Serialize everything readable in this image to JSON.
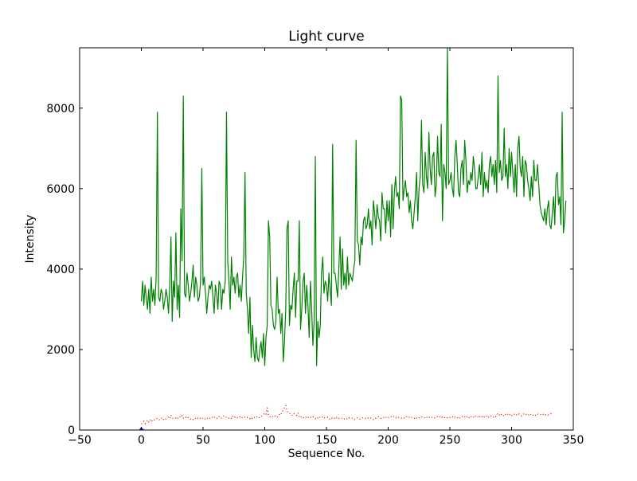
{
  "chart_data": {
    "type": "line",
    "title": "Light curve",
    "xlabel": "Sequence No.",
    "ylabel": "Intensity",
    "xlim": [
      -50,
      350
    ],
    "ylim": [
      0,
      9500
    ],
    "xticks": [
      -50,
      0,
      50,
      100,
      150,
      200,
      250,
      300,
      350
    ],
    "yticks": [
      0,
      2000,
      4000,
      6000,
      8000
    ],
    "grid": false,
    "series": [
      {
        "color": "#008000",
        "style": "solid",
        "x_start": 0,
        "x_step": 1,
        "values": [
          3200,
          3700,
          3100,
          3600,
          3300,
          3000,
          3500,
          2900,
          3800,
          3200,
          3500,
          3100,
          3800,
          7900,
          3300,
          3200,
          3500,
          3400,
          3000,
          3200,
          3500,
          3300,
          2900,
          3600,
          4800,
          2700,
          3700,
          3300,
          4900,
          3000,
          3600,
          2800,
          5500,
          4200,
          8300,
          3400,
          3300,
          3900,
          3600,
          3200,
          3400,
          3700,
          4100,
          3300,
          3800,
          3600,
          3200,
          3300,
          3700,
          6500,
          3600,
          3800,
          3400,
          2900,
          3300,
          3600,
          3500,
          3700,
          3300,
          2900,
          3600,
          3400,
          3000,
          3700,
          3600,
          3000,
          3500,
          3400,
          3700,
          7900,
          4200,
          3700,
          3000,
          4300,
          3600,
          3800,
          3400,
          3800,
          3900,
          3300,
          3600,
          3200,
          3800,
          4300,
          6400,
          3400,
          3000,
          2400,
          3300,
          1800,
          2600,
          2000,
          1700,
          2300,
          1800,
          1700,
          2000,
          2200,
          1800,
          2400,
          1600,
          2300,
          2600,
          5200,
          4800,
          3100,
          3000,
          2600,
          2500,
          2700,
          3800,
          2900,
          3000,
          2400,
          2900,
          1700,
          2200,
          3000,
          5000,
          5200,
          2600,
          3100,
          3000,
          3500,
          3900,
          2800,
          3700,
          3700,
          5200,
          2500,
          3000,
          3700,
          3900,
          2900,
          3600,
          3100,
          2300,
          3700,
          3000,
          2100,
          2700,
          6800,
          1600,
          2700,
          2300,
          2600,
          3900,
          4300,
          3400,
          3700,
          3600,
          3200,
          3900,
          3500,
          3100,
          7100,
          3900,
          3900,
          3600,
          3300,
          4000,
          4800,
          3500,
          4500,
          3600,
          3900,
          3500,
          4300,
          3600,
          3900,
          3800,
          3700,
          4000,
          4200,
          7200,
          4700,
          4600,
          4100,
          4800,
          4600,
          5200,
          5300,
          5000,
          5100,
          5500,
          5000,
          5200,
          4600,
          5700,
          5400,
          5000,
          5600,
          5300,
          5200,
          4700,
          5900,
          5500,
          5500,
          4900,
          5700,
          5200,
          5700,
          4800,
          6100,
          5000,
          5900,
          6300,
          5800,
          5900,
          5500,
          8300,
          8200,
          5700,
          6000,
          6200,
          5800,
          5900,
          5400,
          5700,
          5200,
          5000,
          5400,
          5800,
          6400,
          5200,
          6000,
          6300,
          7700,
          6100,
          5900,
          6900,
          6300,
          6000,
          7400,
          6500,
          6100,
          6800,
          6900,
          5800,
          6100,
          7300,
          6400,
          6300,
          7600,
          5200,
          6600,
          6400,
          6000,
          9500,
          6100,
          6200,
          6400,
          6000,
          5800,
          6800,
          7200,
          6600,
          5900,
          5800,
          6500,
          6700,
          6100,
          7200,
          6700,
          5900,
          6200,
          6100,
          6400,
          6200,
          6800,
          6500,
          6000,
          6000,
          6300,
          6600,
          6100,
          6900,
          5800,
          6400,
          6000,
          6200,
          5900,
          6600,
          6800,
          6300,
          6600,
          6100,
          6700,
          5900,
          8800,
          6400,
          6700,
          6200,
          6300,
          7500,
          6300,
          6600,
          6000,
          7000,
          6300,
          6900,
          6400,
          5900,
          6600,
          5800,
          7000,
          7300,
          6500,
          6300,
          6800,
          5800,
          6700,
          6600,
          6200,
          6000,
          5700,
          6300,
          5800,
          6700,
          6200,
          6200,
          6600,
          6100,
          5600,
          5400,
          5300,
          5200,
          5500,
          5100,
          5500,
          5700,
          5100,
          5000,
          5400,
          5800,
          5100,
          6300,
          6400,
          5600,
          5800,
          5100,
          7900,
          4900,
          5200,
          5700
        ]
      },
      {
        "color": "#ff0000",
        "style": "dotted",
        "x_start": 0,
        "x_step": 1,
        "values": [
          150,
          180,
          220,
          160,
          200,
          250,
          190,
          230,
          270,
          210,
          240,
          260,
          280,
          300,
          270,
          250,
          290,
          310,
          260,
          240,
          280,
          300,
          330,
          290,
          370,
          310,
          280,
          290,
          300,
          270,
          320,
          340,
          310,
          360,
          300,
          290,
          320,
          280,
          310,
          300,
          270,
          290,
          260,
          300,
          280,
          310,
          290,
          270,
          300,
          320,
          280,
          260,
          290,
          310,
          270,
          280,
          300,
          330,
          290,
          320,
          300,
          280,
          310,
          340,
          290,
          300,
          320,
          360,
          330,
          310,
          290,
          300,
          320,
          280,
          340,
          300,
          320,
          290,
          310,
          300,
          330,
          290,
          310,
          300,
          320,
          340,
          310,
          300,
          280,
          320,
          290,
          330,
          310,
          300,
          340,
          320,
          300,
          330,
          350,
          380,
          420,
          390,
          550,
          380,
          340,
          300,
          320,
          340,
          360,
          330,
          310,
          350,
          400,
          380,
          450,
          500,
          560,
          610,
          470,
          430,
          420,
          390,
          360,
          420,
          400,
          380,
          360,
          420,
          330,
          300,
          340,
          320,
          290,
          310,
          330,
          300,
          340,
          320,
          300,
          330,
          310,
          280,
          320,
          300,
          340,
          310,
          300,
          330,
          290,
          310,
          300,
          320,
          280,
          260,
          300,
          290,
          310,
          270,
          300,
          320,
          290,
          300,
          310,
          280,
          260,
          290,
          300,
          270,
          310,
          290,
          280,
          300,
          270,
          260,
          280,
          300,
          290,
          270,
          300,
          310,
          290,
          280,
          300,
          320,
          290,
          310,
          300,
          280,
          260,
          300,
          290,
          310,
          330,
          300,
          290,
          310,
          320,
          300,
          330,
          290,
          310,
          300,
          320,
          340,
          360,
          310,
          300,
          320,
          330,
          300,
          310,
          290,
          320,
          300,
          310,
          330,
          300,
          320,
          290,
          310,
          300,
          280,
          320,
          300,
          330,
          310,
          300,
          320,
          340,
          310,
          300,
          330,
          290,
          310,
          320,
          300,
          330,
          310,
          300,
          320,
          340,
          310,
          330,
          300,
          320,
          290,
          310,
          330,
          300,
          320,
          310,
          330,
          340,
          300,
          320,
          310,
          290,
          330,
          300,
          320,
          340,
          310,
          330,
          300,
          350,
          320,
          300,
          340,
          310,
          330,
          300,
          350,
          320,
          340,
          310,
          360,
          330,
          300,
          340,
          320,
          350,
          310,
          330,
          360,
          340,
          310,
          350,
          330,
          360,
          420,
          380,
          350,
          400,
          370,
          340,
          390,
          420,
          380,
          360,
          400,
          370,
          350,
          390,
          410,
          380,
          360,
          400,
          370,
          350,
          380,
          400,
          370,
          390,
          360,
          380,
          410,
          370,
          350,
          390,
          380,
          360,
          400,
          380,
          370,
          390,
          410,
          380,
          360,
          400,
          380,
          370,
          390,
          410,
          380
        ]
      },
      {
        "color": "#0000ff",
        "style": "solid",
        "x_start": 0,
        "x_step": 1,
        "values": [
          10,
          10,
          10
        ]
      }
    ]
  }
}
